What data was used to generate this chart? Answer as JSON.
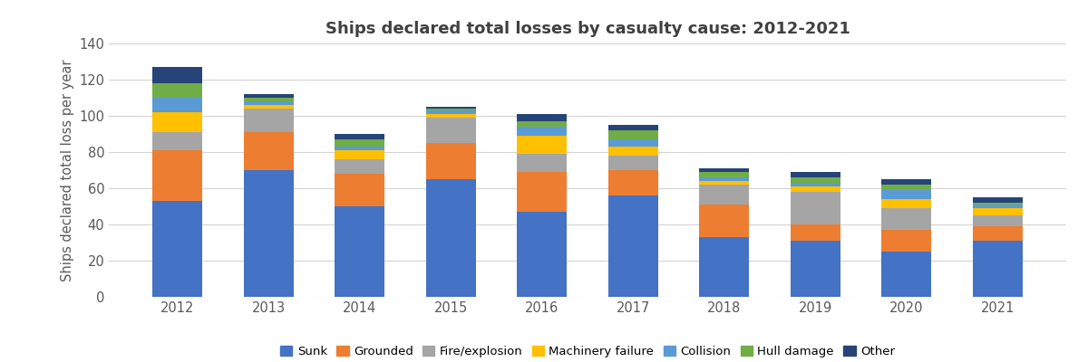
{
  "years": [
    "2012",
    "2013",
    "2014",
    "2015",
    "2016",
    "2017",
    "2018",
    "2019",
    "2020",
    "2021"
  ],
  "categories": [
    "Sunk",
    "Grounded",
    "Fire/explosion",
    "Machinery failure",
    "Collision",
    "Hull damage",
    "Other"
  ],
  "colors": [
    "#4472C4",
    "#ED7D31",
    "#A5A5A5",
    "#FFC000",
    "#5B9BD5",
    "#70AD47",
    "#264478"
  ],
  "data": {
    "Sunk": [
      53,
      70,
      50,
      65,
      47,
      56,
      33,
      31,
      25,
      31
    ],
    "Grounded": [
      28,
      21,
      18,
      20,
      22,
      14,
      18,
      9,
      12,
      8
    ],
    "Fire/explosion": [
      10,
      13,
      8,
      14,
      10,
      8,
      11,
      18,
      12,
      6
    ],
    "Machinery failure": [
      11,
      2,
      5,
      2,
      10,
      5,
      2,
      3,
      5,
      4
    ],
    "Collision": [
      8,
      2,
      2,
      2,
      5,
      4,
      2,
      2,
      5,
      2
    ],
    "Hull damage": [
      8,
      2,
      4,
      1,
      3,
      5,
      3,
      3,
      3,
      1
    ],
    "Other": [
      9,
      2,
      3,
      1,
      4,
      3,
      2,
      3,
      3,
      3
    ]
  },
  "title": "Ships declared total losses by casualty cause: 2012-2021",
  "ylabel": "Ships declared total loss per year",
  "ylim": [
    0,
    140
  ],
  "yticks": [
    0,
    20,
    40,
    60,
    80,
    100,
    120,
    140
  ],
  "background_color": "#FFFFFF",
  "grid_color": "#D3D3D3",
  "figsize": [
    12.0,
    4.0
  ],
  "dpi": 100
}
